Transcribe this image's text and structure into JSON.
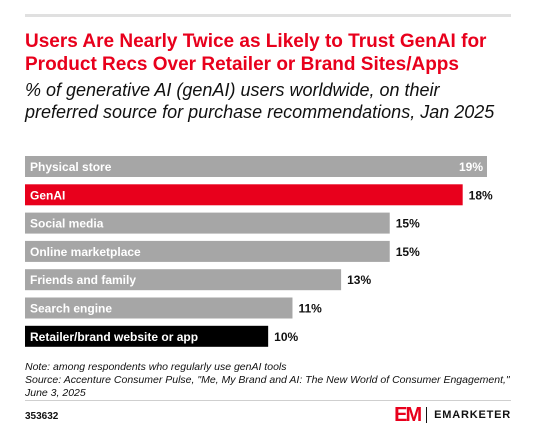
{
  "title": "Users Are Nearly Twice as Likely to Trust GenAI for Product Recs Over Retailer or Brand Sites/Apps",
  "subtitle": "% of generative AI (genAI) users worldwide, on their preferred source for purchase recommendations, Jan 2025",
  "footnote": {
    "note": "Note: among respondents who regularly use genAI tools",
    "source": "Source: Accenture Consumer Pulse, \"Me, My Brand and AI: The New World of Consumer Engagement,\" June 3, 2025"
  },
  "chart_id": "353632",
  "brand": {
    "mark": "EM",
    "name": "EMARKETER"
  },
  "colors": {
    "default_bar": "#a6a6a6",
    "highlight_bar": "#e8001c",
    "dark_bar": "#000000",
    "title": "#e8001c"
  },
  "chart_data": {
    "type": "bar",
    "orientation": "horizontal",
    "categories": [
      "Physical store",
      "GenAI",
      "Social media",
      "Online marketplace",
      "Friends and family",
      "Search engine",
      "Retailer/brand website or app"
    ],
    "values": [
      19,
      18,
      15,
      15,
      13,
      11,
      10
    ],
    "value_labels": [
      "19%",
      "18%",
      "15%",
      "15%",
      "13%",
      "11%",
      "10%"
    ],
    "bar_colors": [
      "#a6a6a6",
      "#e8001c",
      "#a6a6a6",
      "#a6a6a6",
      "#a6a6a6",
      "#a6a6a6",
      "#000000"
    ],
    "xlim": [
      0,
      19
    ],
    "unit": "%",
    "grid": false,
    "legend": "none"
  }
}
